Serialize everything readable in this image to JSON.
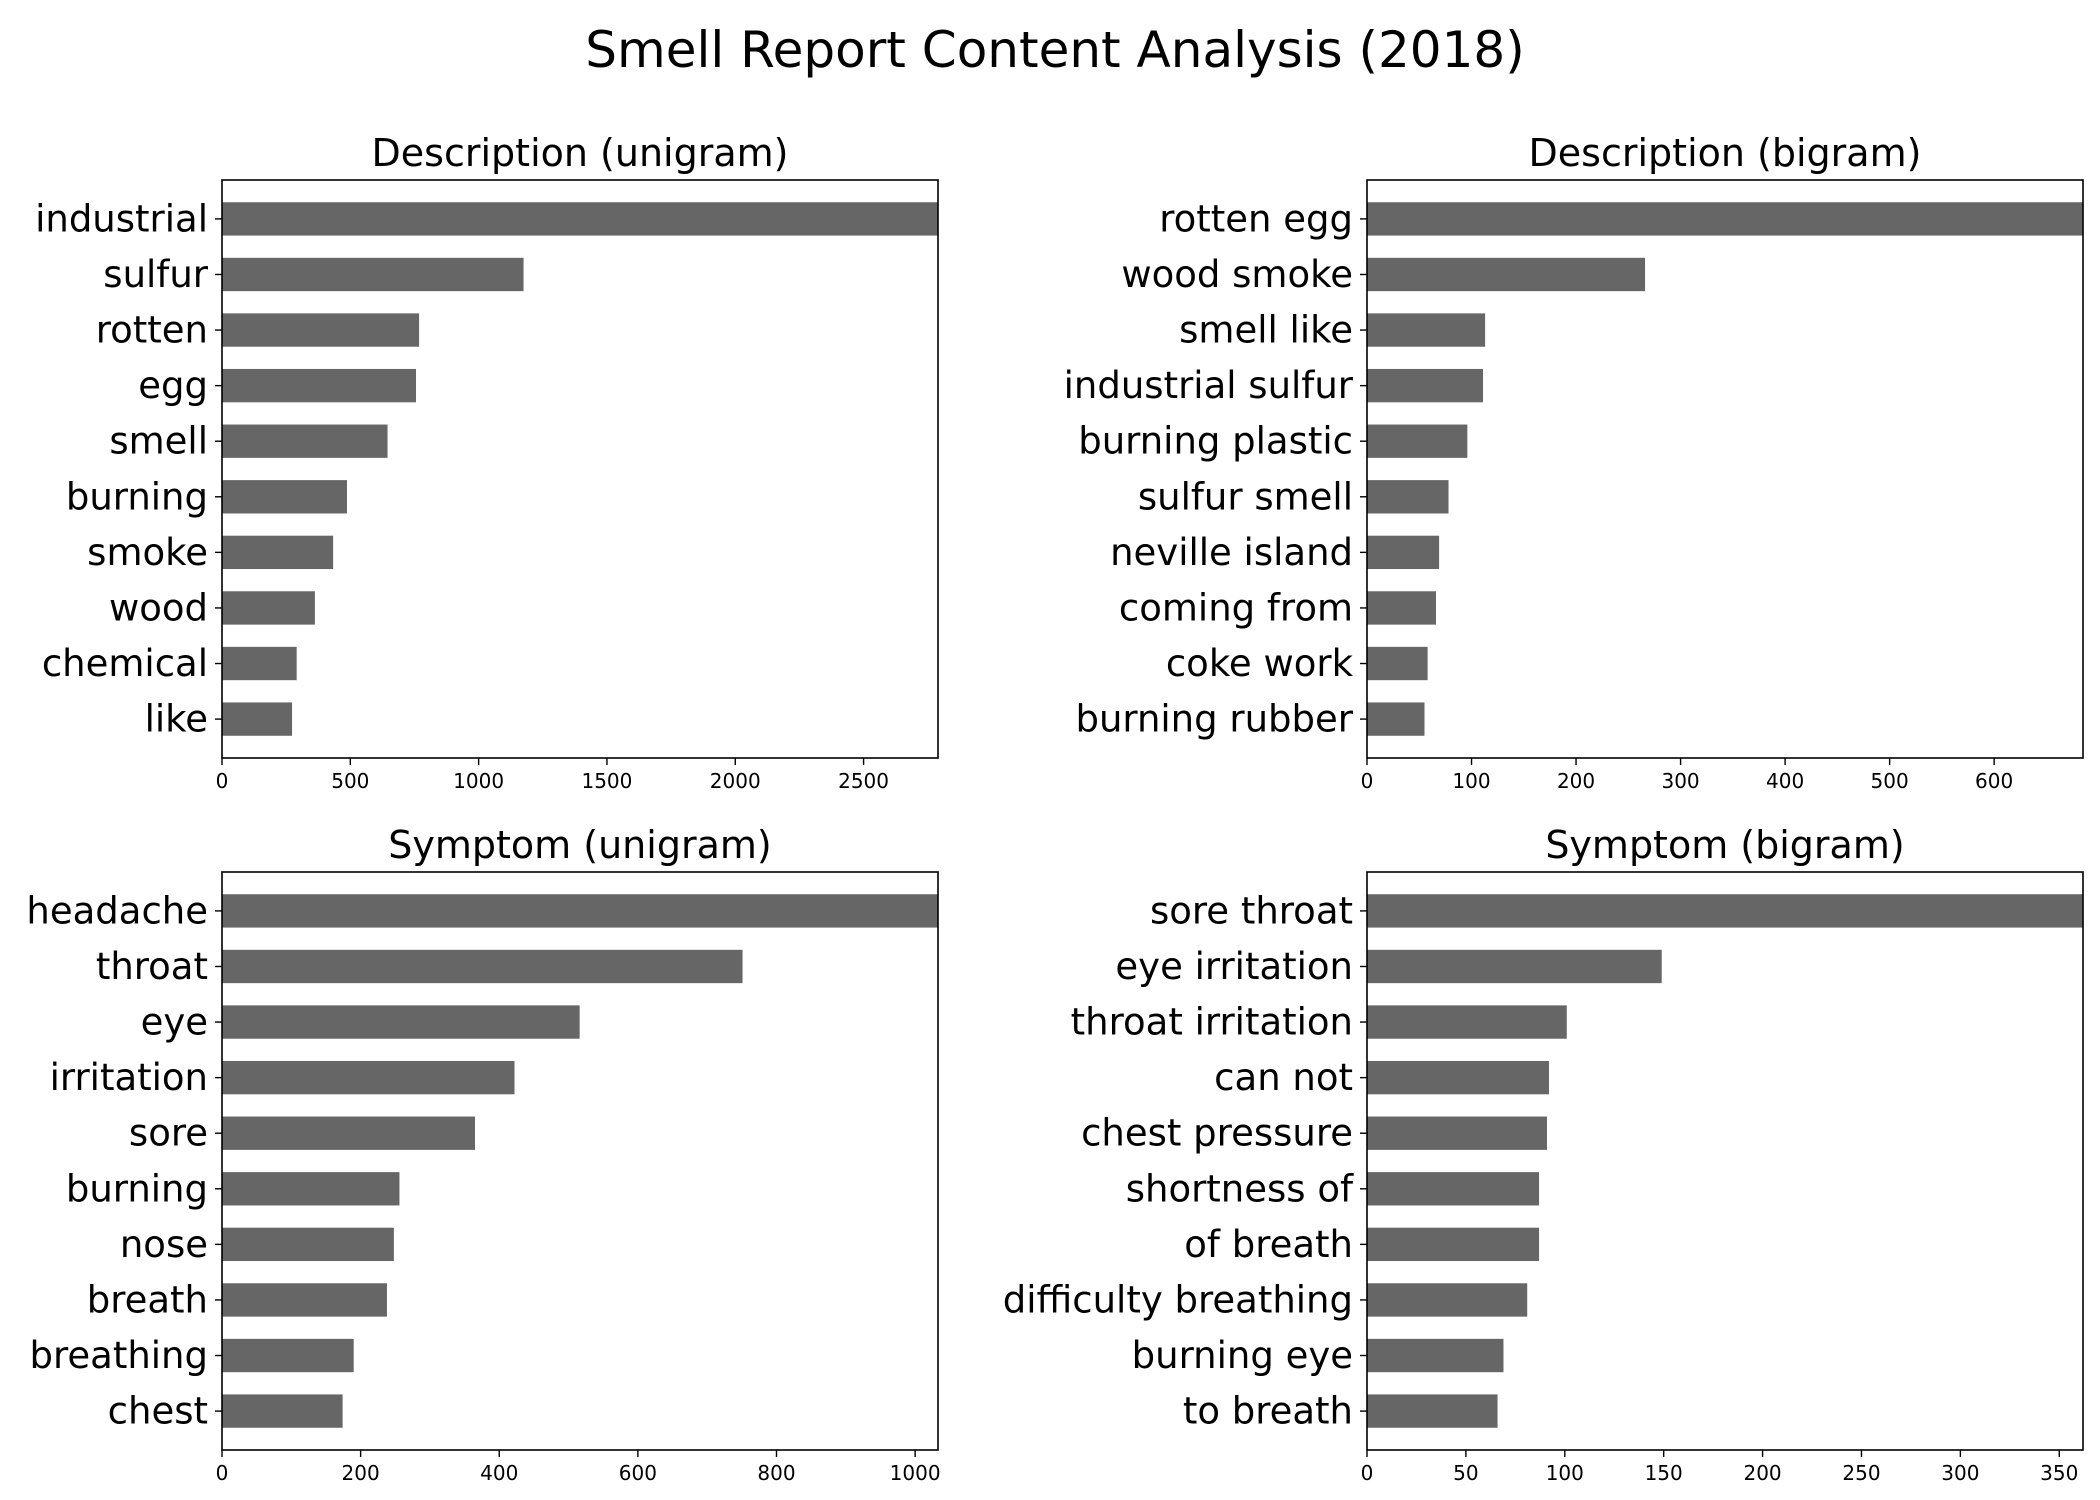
{
  "figure": {
    "title": "Smell Report Content Analysis (2018)",
    "bar_color": "#666666"
  },
  "chart_data": [
    {
      "type": "bar",
      "orientation": "horizontal",
      "title": "Description (unigram)",
      "categories": [
        "industrial",
        "sulfur",
        "rotten",
        "egg",
        "smell",
        "burning",
        "smoke",
        "wood",
        "chemical",
        "like"
      ],
      "values": [
        2790,
        1175,
        768,
        756,
        645,
        487,
        433,
        362,
        291,
        273
      ],
      "xlim": [
        0,
        2790
      ],
      "xticks": [
        0,
        500,
        1000,
        1500,
        2000,
        2500
      ]
    },
    {
      "type": "bar",
      "orientation": "horizontal",
      "title": "Description (bigram)",
      "categories": [
        "rotten egg",
        "wood smoke",
        "smell like",
        "industrial sulfur",
        "burning plastic",
        "sulfur smell",
        "neville island",
        "coming from",
        "coke work",
        "burning rubber"
      ],
      "values": [
        685,
        266,
        113,
        111,
        96,
        78,
        69,
        66,
        58,
        55
      ],
      "xlim": [
        0,
        685
      ],
      "xticks": [
        0,
        100,
        200,
        300,
        400,
        500,
        600
      ]
    },
    {
      "type": "bar",
      "orientation": "horizontal",
      "title": "Symptom (unigram)",
      "categories": [
        "headache",
        "throat",
        "eye",
        "irritation",
        "sore",
        "burning",
        "nose",
        "breath",
        "breathing",
        "chest"
      ],
      "values": [
        1033,
        751,
        516,
        422,
        365,
        256,
        248,
        238,
        190,
        174
      ],
      "xlim": [
        0,
        1033
      ],
      "xticks": [
        0,
        200,
        400,
        600,
        800,
        1000
      ]
    },
    {
      "type": "bar",
      "orientation": "horizontal",
      "title": "Symptom (bigram)",
      "categories": [
        "sore throat",
        "eye irritation",
        "throat irritation",
        "can not",
        "chest pressure",
        "shortness of",
        "of breath",
        "difficulty breathing",
        "burning eye",
        "to breath"
      ],
      "values": [
        362,
        149,
        101,
        92,
        91,
        87,
        87,
        81,
        69,
        66
      ],
      "xlim": [
        0,
        362
      ],
      "xticks": [
        0,
        50,
        100,
        150,
        200,
        250,
        300,
        350
      ]
    }
  ]
}
